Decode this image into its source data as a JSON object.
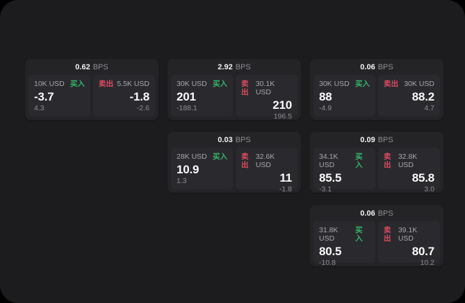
{
  "theme": {
    "page_bg": "#1c1c1e",
    "card_bg": "#242427",
    "panel_bg": "#2a2a2e",
    "buy_green": "#35b56a",
    "sell_red": "#dd4a63",
    "primary_text": "#fafafa",
    "muted_text": "#8f8e93"
  },
  "labels": {
    "bps_suffix": "BPS",
    "buy": "买入",
    "sell": "卖出"
  },
  "cards": [
    {
      "bps": "0.62",
      "buy": {
        "amount": "10K USD",
        "value": "-3.7",
        "sub": "4.3"
      },
      "sell": {
        "amount": "5.5K USD",
        "value": "-1.8",
        "sub": "-2.6"
      }
    },
    {
      "bps": "2.92",
      "buy": {
        "amount": "30K USD",
        "value": "201",
        "sub": "-188.1"
      },
      "sell": {
        "amount": "30.1K USD",
        "value": "210",
        "sub": "196.5"
      }
    },
    {
      "bps": "0.06",
      "buy": {
        "amount": "30K USD",
        "value": "88",
        "sub": "-4.9"
      },
      "sell": {
        "amount": "30K USD",
        "value": "88.2",
        "sub": "4.7"
      }
    },
    {
      "bps": "0.03",
      "buy": {
        "amount": "28K USD",
        "value": "10.9",
        "sub": "1.3"
      },
      "sell": {
        "amount": "32.6K USD",
        "value": "11",
        "sub": "-1.8"
      }
    },
    {
      "bps": "0.09",
      "buy": {
        "amount": "34.1K USD",
        "value": "85.5",
        "sub": "-3.1"
      },
      "sell": {
        "amount": "32.8K USD",
        "value": "85.8",
        "sub": "3.0"
      }
    },
    {
      "bps": "0.06",
      "buy": {
        "amount": "31.8K USD",
        "value": "80.5",
        "sub": "-10.8"
      },
      "sell": {
        "amount": "39.1K USD",
        "value": "80.7",
        "sub": "10.2"
      }
    }
  ]
}
